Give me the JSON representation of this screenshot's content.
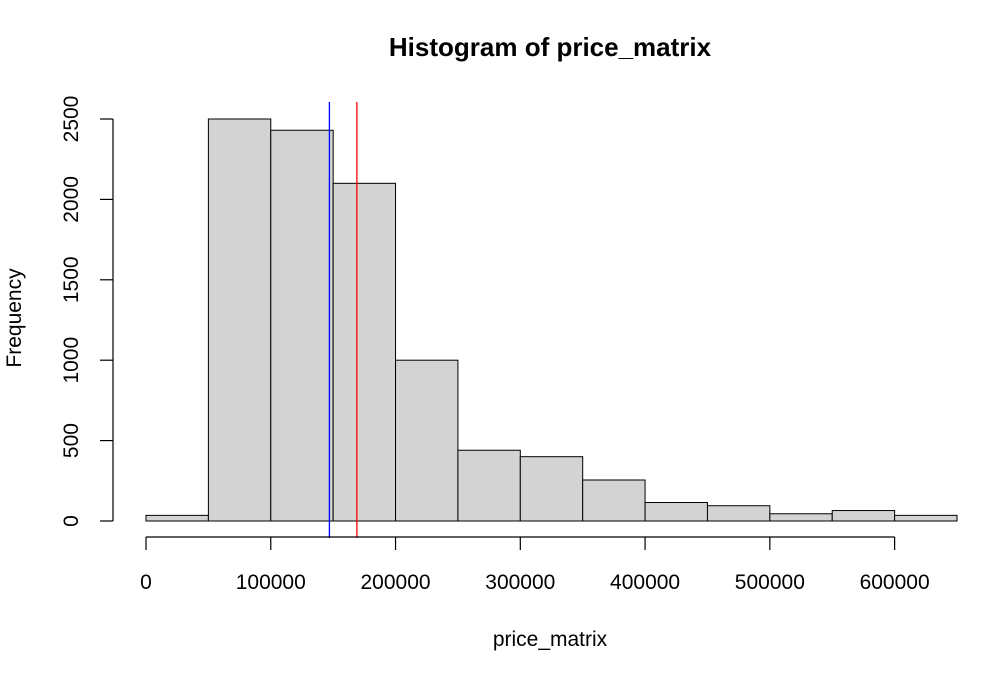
{
  "chart_data": {
    "type": "bar",
    "title": "Histogram of price_matrix",
    "xlabel": "price_matrix",
    "ylabel": "Frequency",
    "bins": [
      {
        "start": 0,
        "end": 50000,
        "count": 35
      },
      {
        "start": 50000,
        "end": 100000,
        "count": 2500
      },
      {
        "start": 100000,
        "end": 150000,
        "count": 2430
      },
      {
        "start": 150000,
        "end": 200000,
        "count": 2100
      },
      {
        "start": 200000,
        "end": 250000,
        "count": 1000
      },
      {
        "start": 250000,
        "end": 300000,
        "count": 440
      },
      {
        "start": 300000,
        "end": 350000,
        "count": 400
      },
      {
        "start": 350000,
        "end": 400000,
        "count": 255
      },
      {
        "start": 400000,
        "end": 450000,
        "count": 115
      },
      {
        "start": 450000,
        "end": 500000,
        "count": 95
      },
      {
        "start": 500000,
        "end": 550000,
        "count": 45
      },
      {
        "start": 550000,
        "end": 600000,
        "count": 65
      },
      {
        "start": 600000,
        "end": 650000,
        "count": 35
      }
    ],
    "xlim": [
      0,
      650000
    ],
    "ylim": [
      0,
      2600
    ],
    "x_ticks": [
      0,
      100000,
      200000,
      300000,
      400000,
      500000,
      600000
    ],
    "y_ticks": [
      0,
      500,
      1000,
      1500,
      2000,
      2500
    ],
    "vlines": [
      {
        "x": 147000,
        "color": "#0000ff"
      },
      {
        "x": 169000,
        "color": "#ff0000"
      }
    ],
    "grid": false
  }
}
